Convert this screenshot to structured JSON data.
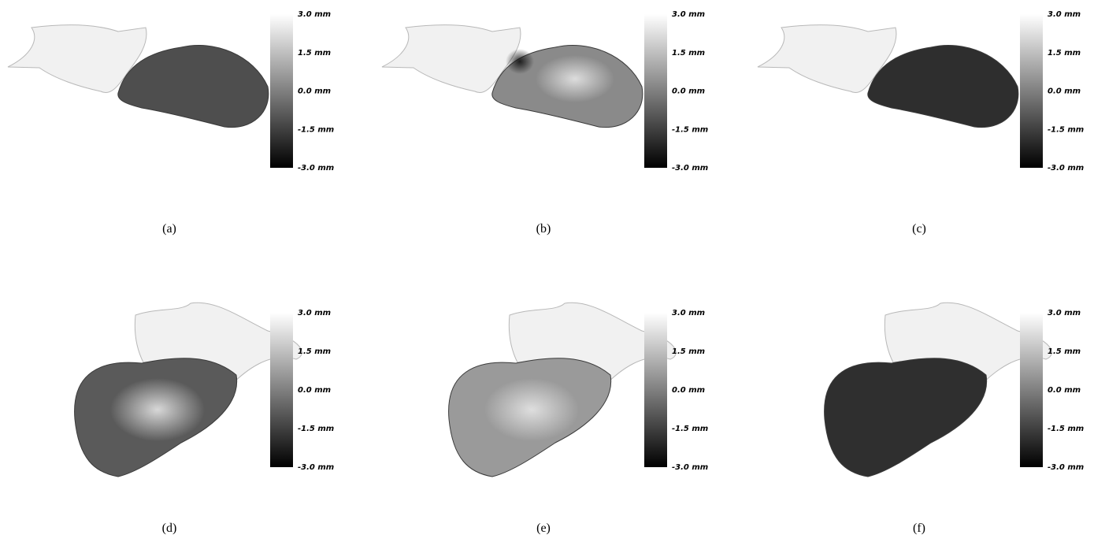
{
  "panels": [
    {
      "caption": "(a)",
      "colorbar_labels": [
        "3.0 mm",
        "1.5 mm",
        "0.0 mm",
        "-1.5 mm",
        "-3.0 mm"
      ]
    },
    {
      "caption": "(b)",
      "colorbar_labels": [
        "3.0 mm",
        "1.5 mm",
        "0.0 mm",
        "-1.5 mm",
        "-3.0 mm"
      ]
    },
    {
      "caption": "(c)",
      "colorbar_labels": [
        "3.0 mm",
        "1.5 mm",
        "0.0 mm",
        "-1.5 mm",
        "-3.0 mm"
      ]
    },
    {
      "caption": "(d)",
      "colorbar_labels": [
        "3.0 mm",
        "1.5 mm",
        "0.0 mm",
        "-1.5 mm",
        "-3.0 mm"
      ]
    },
    {
      "caption": "(e)",
      "colorbar_labels": [
        "3.0 mm",
        "1.5 mm",
        "0.0 mm",
        "-1.5 mm",
        "-3.0 mm"
      ]
    },
    {
      "caption": "(f)",
      "colorbar_labels": [
        "3.0 mm",
        "1.5 mm",
        "0.0 mm",
        "-1.5 mm",
        "-3.0 mm"
      ]
    }
  ]
}
